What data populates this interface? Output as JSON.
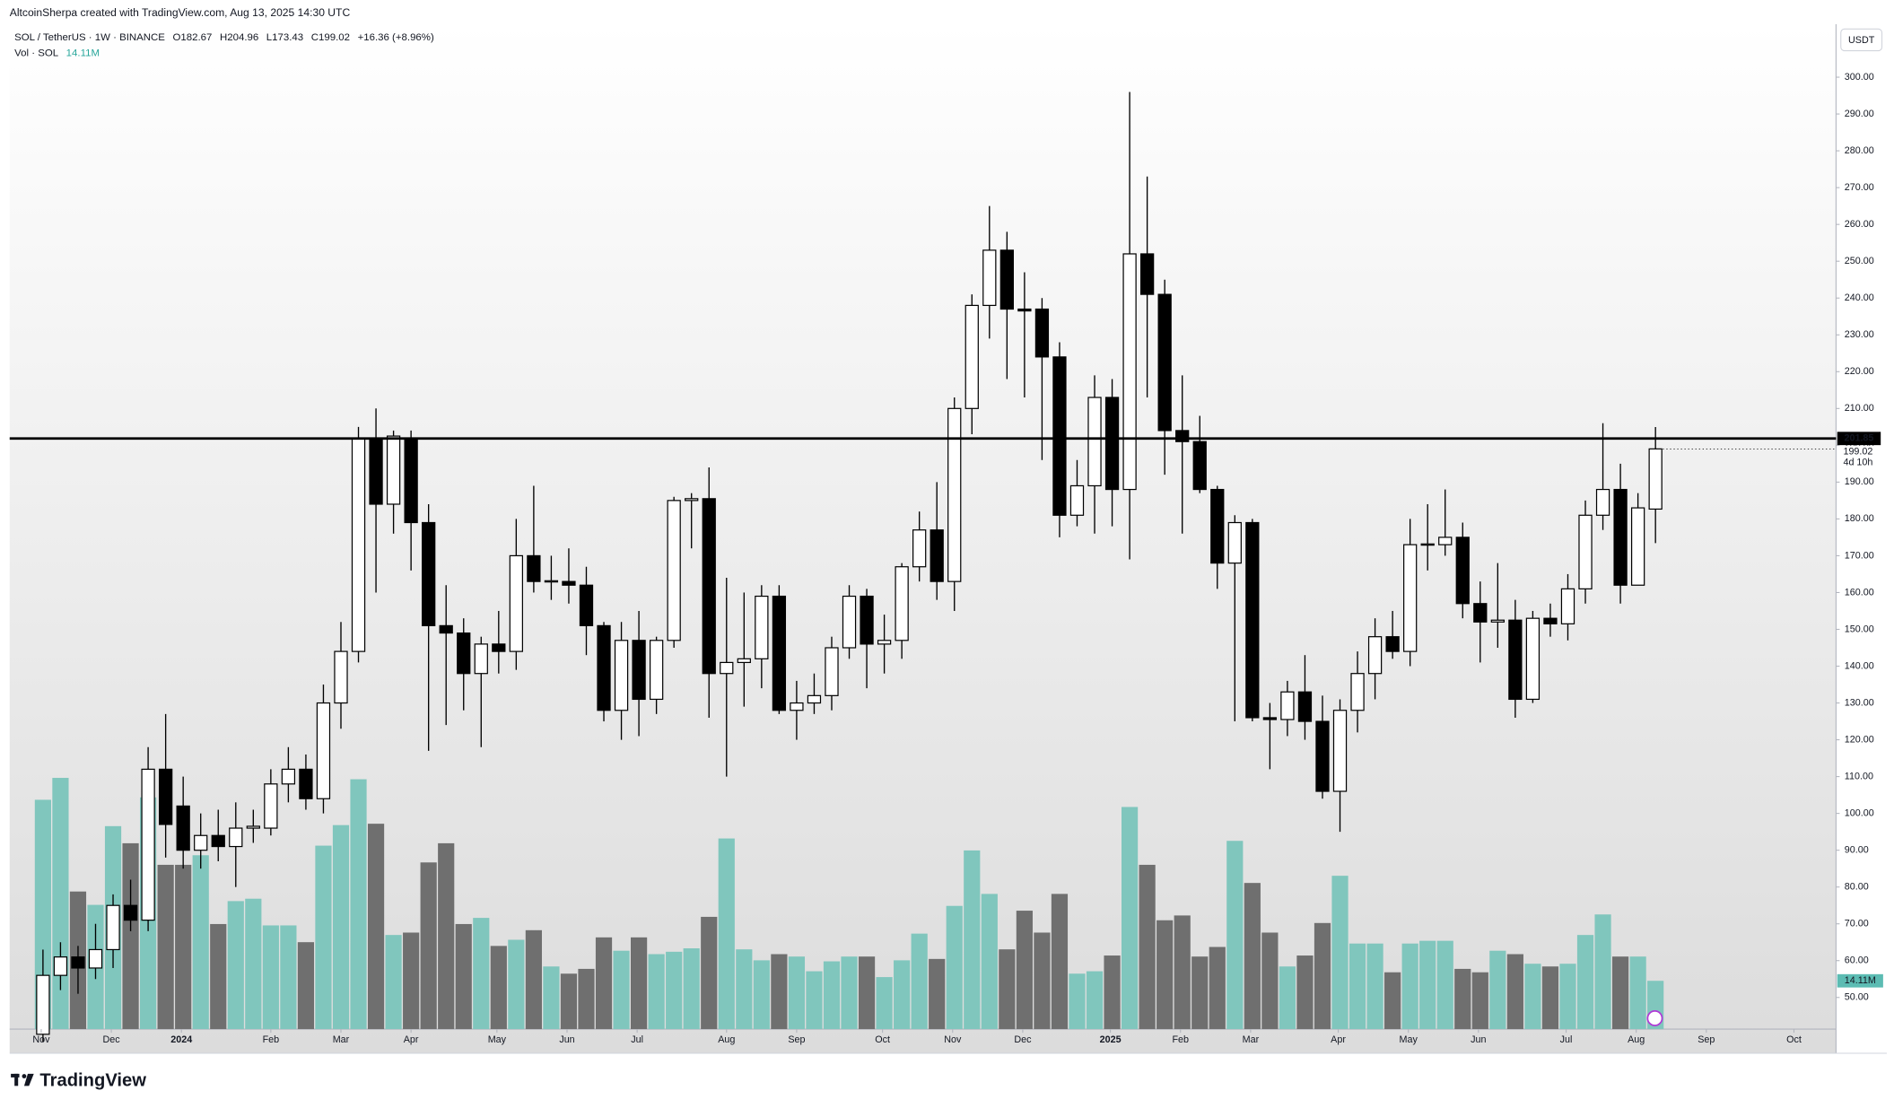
{
  "chart_data": {
    "type": "candlestick",
    "credit": "AltcoinSherpa created with TradingView.com, Aug 13, 2025 14:30 UTC",
    "symbol": "SOL / TetherUS · 1W · BINANCE",
    "ohlc_prefixes": {
      "open": "O",
      "high": "H",
      "low": "L",
      "close": "C"
    },
    "change": "+16.36 (+8.96%)",
    "volume_name": "Vol · SOL",
    "volume_last_label": "14.11M",
    "currency": "USDT",
    "countdown": "4d 10h",
    "brand": "TradingView",
    "level": 201.85,
    "up_color": "#ffffff",
    "down_color": "#000000",
    "volume_up_color": "#80c6bd",
    "volume_down_color": "#6f6f6f",
    "open": [
      40,
      56,
      61,
      58,
      63,
      75,
      71,
      112,
      102,
      90,
      94,
      91,
      96,
      96,
      108,
      112,
      104,
      130,
      144,
      202,
      184,
      202,
      179,
      151,
      149,
      138,
      146,
      144,
      170,
      163,
      163,
      162,
      151,
      128,
      147,
      131,
      147,
      185,
      185.5,
      138,
      141,
      142,
      159,
      128,
      130,
      132,
      145,
      159,
      146,
      147,
      167,
      177,
      163,
      210,
      238,
      253,
      237,
      237,
      224,
      181,
      189,
      213,
      188,
      252,
      241,
      204,
      201,
      188,
      168,
      179,
      126,
      125.5,
      133,
      125,
      106,
      128,
      138,
      148,
      144,
      173,
      173,
      175,
      157,
      152,
      152.5,
      131,
      153,
      151.5,
      161,
      181,
      188,
      162,
      182.67
    ],
    "high": [
      63,
      65,
      64,
      70,
      78,
      82,
      118,
      127,
      110,
      100,
      101,
      103,
      101,
      112,
      118,
      116,
      135,
      152,
      205,
      210,
      204,
      204,
      184,
      162,
      153,
      148,
      155,
      180,
      189,
      170,
      172,
      167,
      152,
      152,
      155,
      148,
      186,
      187,
      194,
      164,
      160,
      162,
      162,
      136,
      138,
      148,
      162,
      161,
      154,
      168,
      182,
      190,
      213,
      241,
      265,
      258,
      247,
      240,
      228,
      196,
      219,
      218,
      296,
      273,
      245,
      219,
      208,
      189,
      181,
      180,
      130,
      136,
      143,
      132,
      131,
      144,
      153,
      155,
      180,
      184,
      188,
      179,
      163,
      168,
      158,
      155,
      157,
      165,
      185,
      206,
      195,
      187,
      204.96
    ],
    "low": [
      38,
      52,
      51,
      55,
      58,
      68,
      68,
      88,
      85,
      85,
      87,
      80,
      92,
      94,
      103,
      101,
      100,
      123,
      141,
      160,
      176,
      166,
      117,
      124,
      128,
      118,
      138,
      139,
      160,
      158,
      157,
      143,
      125,
      120,
      121,
      127,
      145,
      172,
      126,
      110,
      129,
      134,
      127,
      120,
      127,
      128,
      142,
      134,
      138,
      142,
      163,
      158,
      155,
      203,
      229,
      218,
      213,
      196,
      175,
      178,
      176,
      178,
      169,
      213,
      192,
      176,
      187,
      161,
      125,
      125,
      112,
      121,
      120,
      104,
      95,
      122,
      131,
      142,
      140,
      166,
      170,
      153,
      141,
      145,
      126,
      130,
      148,
      147,
      157,
      177,
      157,
      163,
      173.43
    ],
    "close": [
      56,
      61,
      58,
      63,
      75,
      71,
      112,
      97,
      90,
      94,
      91,
      96,
      96.5,
      108,
      112,
      104,
      130,
      144,
      202,
      184,
      202.5,
      179,
      151,
      149,
      138,
      146,
      144,
      170,
      163,
      163.2,
      162,
      151,
      128,
      147,
      131,
      147,
      185,
      185.5,
      138,
      141,
      142,
      159,
      128,
      130,
      132,
      145,
      159,
      146,
      147,
      167,
      177,
      163,
      210,
      238,
      253,
      237,
      236.5,
      224,
      181,
      189,
      213,
      188,
      252,
      241,
      204,
      201,
      188,
      168,
      179,
      126,
      125.5,
      133,
      125,
      106,
      128,
      138,
      148,
      144,
      173,
      173.2,
      175,
      157,
      152,
      152.5,
      131,
      153,
      151.5,
      161,
      181,
      188,
      162,
      183,
      199.02
    ],
    "volume": [
      67.0,
      73.4,
      40.2,
      36.3,
      59.3,
      54.3,
      67.7,
      48.0,
      48.0,
      50.8,
      30.7,
      37.4,
      38.1,
      30.3,
      30.3,
      25.4,
      53.6,
      59.6,
      73.0,
      60.0,
      27.5,
      28.2,
      48.7,
      54.3,
      30.7,
      32.5,
      24.3,
      26.1,
      28.9,
      18.3,
      16.2,
      17.6,
      26.8,
      22.9,
      26.8,
      21.9,
      22.6,
      23.6,
      32.8,
      55.7,
      23.3,
      20.1,
      21.9,
      21.2,
      16.9,
      19.8,
      21.2,
      21.2,
      15.2,
      20.1,
      27.9,
      20.5,
      36.0,
      52.2,
      39.5,
      23.3,
      34.6,
      28.2,
      39.5,
      16.2,
      16.9,
      21.5,
      64.9,
      48.0,
      31.8,
      33.2,
      21.2,
      24.0,
      55.0,
      42.7,
      28.2,
      18.3,
      21.5,
      31.0,
      44.8,
      25.0,
      25.0,
      16.6,
      25.0,
      25.8,
      25.8,
      17.6,
      16.6,
      22.9,
      21.9,
      19.1,
      18.3,
      19.1,
      27.5,
      33.5,
      21.2,
      21.2,
      14.11
    ],
    "xlim": [
      -1.9,
      102.3
    ],
    "xticks": [
      {
        "value": -0.1,
        "label": "Nov"
      },
      {
        "value": 3.9,
        "label": "Dec"
      },
      {
        "value": 7.9,
        "label": "2024"
      },
      {
        "value": 13.0,
        "label": "Feb"
      },
      {
        "value": 17.0,
        "label": "Mar"
      },
      {
        "value": 21.0,
        "label": "Apr"
      },
      {
        "value": 25.9,
        "label": "May"
      },
      {
        "value": 29.9,
        "label": "Jun"
      },
      {
        "value": 33.9,
        "label": "Jul"
      },
      {
        "value": 39.0,
        "label": "Aug"
      },
      {
        "value": 43.0,
        "label": "Sep"
      },
      {
        "value": 47.9,
        "label": "Oct"
      },
      {
        "value": 51.9,
        "label": "Nov"
      },
      {
        "value": 55.9,
        "label": "Dec"
      },
      {
        "value": 60.9,
        "label": "2025"
      },
      {
        "value": 64.9,
        "label": "Feb"
      },
      {
        "value": 68.9,
        "label": "Mar"
      },
      {
        "value": 73.9,
        "label": "Apr"
      },
      {
        "value": 77.9,
        "label": "May"
      },
      {
        "value": 81.9,
        "label": "Jun"
      },
      {
        "value": 86.9,
        "label": "Jul"
      },
      {
        "value": 90.9,
        "label": "Aug"
      },
      {
        "value": 94.9,
        "label": "Sep"
      },
      {
        "value": 99.9,
        "label": "Oct"
      }
    ],
    "ylim": [
      41.4,
      314.4
    ],
    "yticks": [
      {
        "value": 50,
        "label": "50.00"
      },
      {
        "value": 60,
        "label": "60.00"
      },
      {
        "value": 70,
        "label": "70.00"
      },
      {
        "value": 80,
        "label": "80.00"
      },
      {
        "value": 90,
        "label": "90.00"
      },
      {
        "value": 100,
        "label": "100.00"
      },
      {
        "value": 110,
        "label": "110.00"
      },
      {
        "value": 120,
        "label": "120.00"
      },
      {
        "value": 130,
        "label": "130.00"
      },
      {
        "value": 140,
        "label": "140.00"
      },
      {
        "value": 150,
        "label": "150.00"
      },
      {
        "value": 160,
        "label": "160.00"
      },
      {
        "value": 170,
        "label": "170.00"
      },
      {
        "value": 180,
        "label": "180.00"
      },
      {
        "value": 190,
        "label": "190.00"
      },
      {
        "value": 200,
        "label": "200.00"
      },
      {
        "value": 210,
        "label": "210.00"
      },
      {
        "value": 220,
        "label": "220.00"
      },
      {
        "value": 230,
        "label": "230.00"
      },
      {
        "value": 240,
        "label": "240.00"
      },
      {
        "value": 250,
        "label": "250.00"
      },
      {
        "value": 260,
        "label": "260.00"
      },
      {
        "value": 270,
        "label": "270.00"
      },
      {
        "value": 280,
        "label": "280.00"
      },
      {
        "value": 290,
        "label": "290.00"
      },
      {
        "value": 300,
        "label": "300.00"
      }
    ]
  }
}
